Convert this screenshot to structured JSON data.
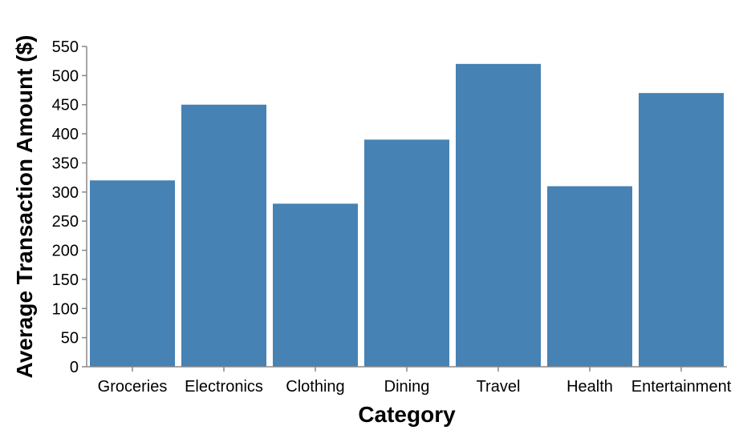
{
  "chart_data": {
    "type": "bar",
    "title": "",
    "xlabel": "Category",
    "ylabel": "Average Transaction Amount ($)",
    "categories": [
      "Groceries",
      "Electronics",
      "Clothing",
      "Dining",
      "Travel",
      "Health",
      "Entertainment"
    ],
    "values": [
      320,
      450,
      280,
      390,
      520,
      310,
      470
    ],
    "ylim": [
      0,
      550
    ],
    "yticks": [
      0,
      50,
      100,
      150,
      200,
      250,
      300,
      350,
      400,
      450,
      500,
      550
    ],
    "grid": false,
    "legend": "none",
    "bar_color": "#4682b4"
  }
}
